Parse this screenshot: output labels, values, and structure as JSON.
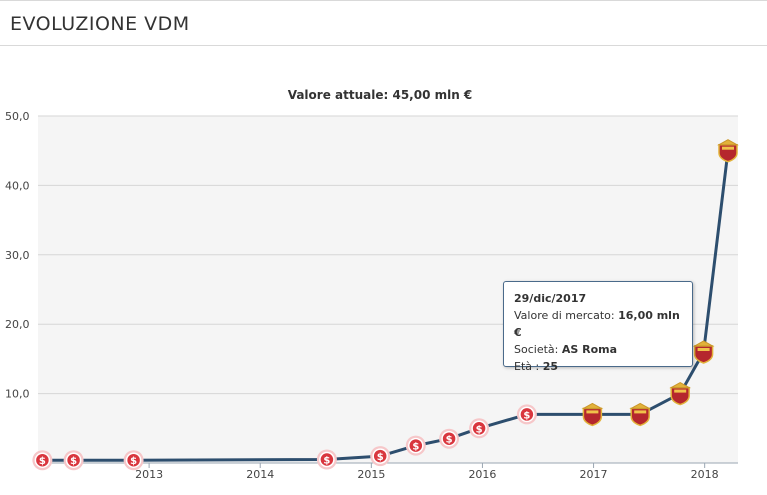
{
  "header": {
    "title": "EVOLUZIONE VDM"
  },
  "chart_data": {
    "type": "line",
    "title": "Valore attuale: 45,00 mln €",
    "xlabel": "",
    "ylabel": "",
    "ylim": [
      0,
      50
    ],
    "y_ticks": [
      "10,0",
      "20,0",
      "30,0",
      "40,0",
      "50,0"
    ],
    "y_tick_values": [
      10,
      20,
      30,
      40,
      50
    ],
    "x_ticks": [
      "2013",
      "2014",
      "2015",
      "2016",
      "2017",
      "2018"
    ],
    "x_tick_values": [
      2013,
      2014,
      2015,
      2016,
      2017,
      2018
    ],
    "xlim": [
      2012.0,
      2018.3
    ],
    "grid": true,
    "colors": {
      "line": "#2d4e6e",
      "marker_money": "#d9363e",
      "marker_club": "#b5272d",
      "grid": "#d6d6d6",
      "plot_bg": "#f5f5f5"
    },
    "series": [
      {
        "values": [
          {
            "x": 2012.04,
            "y": 0.4,
            "marker": "money-icon"
          },
          {
            "x": 2012.32,
            "y": 0.4,
            "marker": "money-icon"
          },
          {
            "x": 2012.86,
            "y": 0.4,
            "marker": "money-icon"
          },
          {
            "x": 2014.6,
            "y": 0.5,
            "marker": "money-icon"
          },
          {
            "x": 2015.08,
            "y": 1.0,
            "marker": "money-icon"
          },
          {
            "x": 2015.4,
            "y": 2.5,
            "marker": "money-icon"
          },
          {
            "x": 2015.7,
            "y": 3.5,
            "marker": "money-icon"
          },
          {
            "x": 2015.97,
            "y": 5.0,
            "marker": "money-icon"
          },
          {
            "x": 2016.4,
            "y": 7.0,
            "marker": "money-icon"
          },
          {
            "x": 2016.99,
            "y": 7.0,
            "marker": "club-crest-icon"
          },
          {
            "x": 2017.42,
            "y": 7.0,
            "marker": "club-crest-icon"
          },
          {
            "x": 2017.78,
            "y": 10.0,
            "marker": "club-crest-icon"
          },
          {
            "x": 2017.99,
            "y": 16.0,
            "marker": "club-crest-icon"
          },
          {
            "x": 2018.21,
            "y": 45.0,
            "marker": "club-crest-icon"
          }
        ]
      }
    ]
  },
  "tooltip": {
    "date": "29/dic/2017",
    "market_label": "Valore di mercato:",
    "market_value": "16,00 mln €",
    "club_label": "Società:",
    "club_value": "AS Roma",
    "age_label": "Età :",
    "age_value": "25"
  }
}
